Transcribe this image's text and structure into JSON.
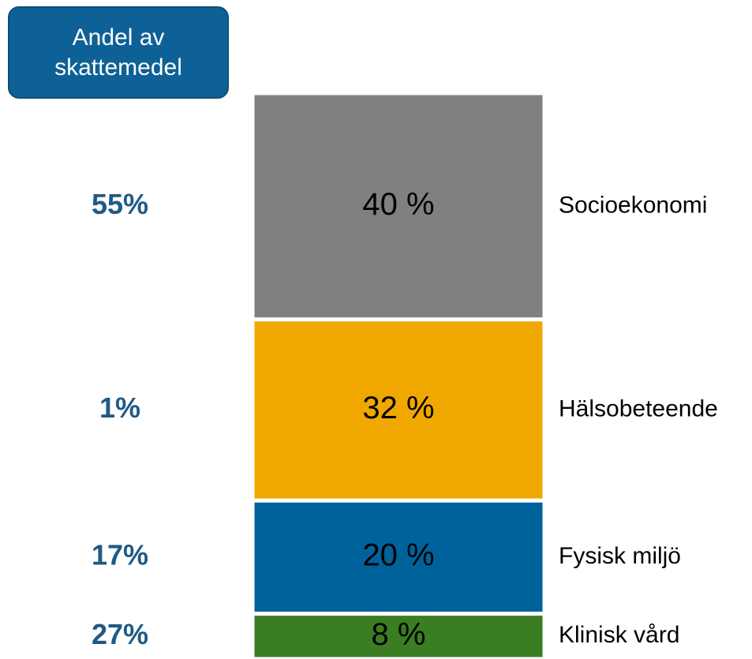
{
  "chart_data": {
    "type": "stacked_bar",
    "categories": [
      "Socioekonomi",
      "Hälsobeteende",
      "Fysisk miljö",
      "Klinisk vård"
    ],
    "values": [
      40,
      32,
      20,
      8
    ],
    "value_labels": [
      "40 %",
      "32 %",
      "20 %",
      "8 %"
    ],
    "colors": [
      "#808080",
      "#f0a800",
      "#00629b",
      "#3a7d23"
    ],
    "tax_share": {
      "title": "Andel av skattemedel",
      "values": [
        55,
        1,
        17,
        27
      ],
      "value_labels": [
        "55%",
        "1%",
        "17%",
        "27%"
      ]
    }
  }
}
